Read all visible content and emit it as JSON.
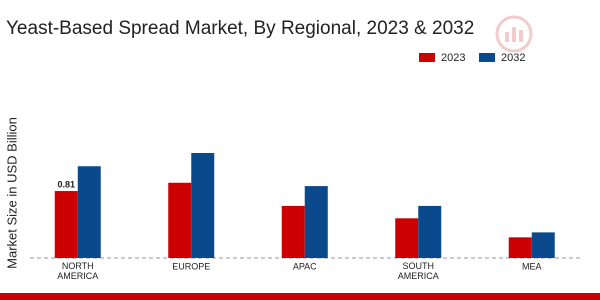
{
  "chart_data": {
    "type": "bar",
    "title": "Yeast-Based Spread Market, By Regional, 2023 & 2032",
    "y_label": "Market Size in USD Billion",
    "categories": [
      "NORTH AMERICA",
      "EUROPE",
      "APAC",
      "SOUTH AMERICA",
      "MEA"
    ],
    "series": [
      {
        "name": "2023",
        "color": "#cc0000",
        "values": [
          0.81,
          0.91,
          0.63,
          0.48,
          0.25
        ],
        "value_labels": [
          "0.81",
          null,
          null,
          null,
          null
        ]
      },
      {
        "name": "2032",
        "color": "#0a4a8c",
        "values": [
          1.11,
          1.27,
          0.87,
          0.63,
          0.31
        ]
      }
    ],
    "ylim": [
      0,
      1.5
    ],
    "legend": "top-right"
  }
}
